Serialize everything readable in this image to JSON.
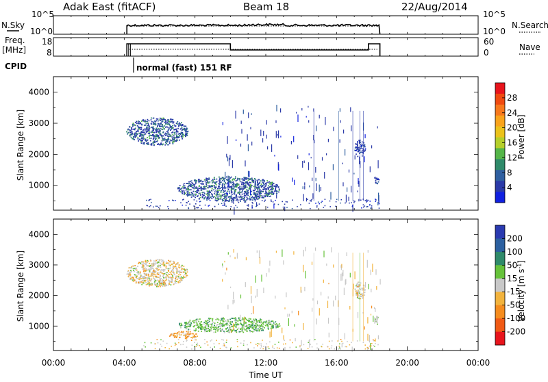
{
  "header": {
    "station": "Adak East (fitACF)",
    "beam": "Beam 18",
    "date": "22/Aug/2014"
  },
  "strip_panels": {
    "nsky_label": "N.Sky",
    "nsearch_label": "N.Search",
    "nsky_ticks": [
      "10^5",
      "10^0"
    ],
    "freq_label_1": "Freq.",
    "freq_label_2": "[MHz]",
    "freq_ticks": [
      "18",
      "8"
    ],
    "nave_label": "Nave",
    "nave_ticks": [
      "60",
      "0"
    ],
    "cpid_label": "CPID",
    "cpid_text": "normal (fast) 151 RF"
  },
  "colorbars": {
    "power": {
      "label": "Power [dB]",
      "ticks": [
        "28",
        "24",
        "20",
        "16",
        "12",
        "8",
        "4"
      ],
      "colors": [
        "#e8141c",
        "#f04a10",
        "#f7781c",
        "#f9a31b",
        "#ebc21a",
        "#b5cf2a",
        "#54b548",
        "#2f8a6a",
        "#2f5fa0",
        "#2b3aa8",
        "#1020e0"
      ]
    },
    "velocity": {
      "label": "Velocity [m s",
      "label_sup": "-1",
      "label_end": "]",
      "ticks": [
        "200",
        "100",
        "50",
        "15",
        "-15",
        "-50",
        "-100",
        "-200"
      ],
      "colors": [
        "#2a3ab0",
        "#2c60a0",
        "#2f8a6a",
        "#66c23a",
        "#c8c8c8",
        "#f2b33d",
        "#f58c1e",
        "#f05a14",
        "#e8141c"
      ]
    }
  },
  "chart_data": [
    {
      "type": "heatmap",
      "panel": "power",
      "xlabel": "",
      "ylabel": "Slant Range [km]",
      "x_ticks": [
        "00:00",
        "04:00",
        "08:00",
        "12:00",
        "16:00",
        "20:00",
        "00:00"
      ],
      "x_hours": [
        0,
        4,
        8,
        12,
        16,
        20,
        24
      ],
      "y_ticks": [
        1000,
        2000,
        3000,
        4000
      ],
      "xlim_hours": [
        0,
        24
      ],
      "ylim_km": [
        200,
        4500
      ],
      "regions": [
        {
          "t0": 4.1,
          "t1": 7.6,
          "r0": 2300,
          "r1": 3200,
          "level": "mid"
        },
        {
          "t0": 7.0,
          "t1": 12.8,
          "r0": 500,
          "r1": 1300,
          "level": "mid"
        },
        {
          "t0": 17.0,
          "t1": 17.6,
          "r0": 1900,
          "r1": 2500,
          "level": "low"
        },
        {
          "t0": 18.1,
          "t1": 18.4,
          "r0": 1050,
          "r1": 1350,
          "level": "low"
        }
      ]
    },
    {
      "type": "heatmap",
      "panel": "velocity",
      "xlabel": "Time UT",
      "ylabel": "Slant Range [km]",
      "x_ticks": [
        "00:00",
        "04:00",
        "08:00",
        "12:00",
        "16:00",
        "20:00",
        "00:00"
      ],
      "x_hours": [
        0,
        4,
        8,
        12,
        16,
        20,
        24
      ],
      "y_ticks": [
        1000,
        2000,
        3000,
        4000
      ],
      "xlim_hours": [
        0,
        24
      ],
      "ylim_km": [
        200,
        4500
      ],
      "regions": [
        {
          "t0": 4.1,
          "t1": 7.6,
          "r0": 2300,
          "r1": 3200,
          "level": "near-zero"
        },
        {
          "t0": 7.0,
          "t1": 12.8,
          "r0": 800,
          "r1": 1300,
          "level": "positive"
        },
        {
          "t0": 6.5,
          "t1": 8.2,
          "r0": 600,
          "r1": 850,
          "level": "negative"
        },
        {
          "t0": 17.0,
          "t1": 17.6,
          "r0": 1900,
          "r1": 2500,
          "level": "near-zero"
        },
        {
          "t0": 18.1,
          "t1": 18.4,
          "r0": 1050,
          "r1": 1350,
          "level": "near-zero"
        }
      ]
    }
  ]
}
